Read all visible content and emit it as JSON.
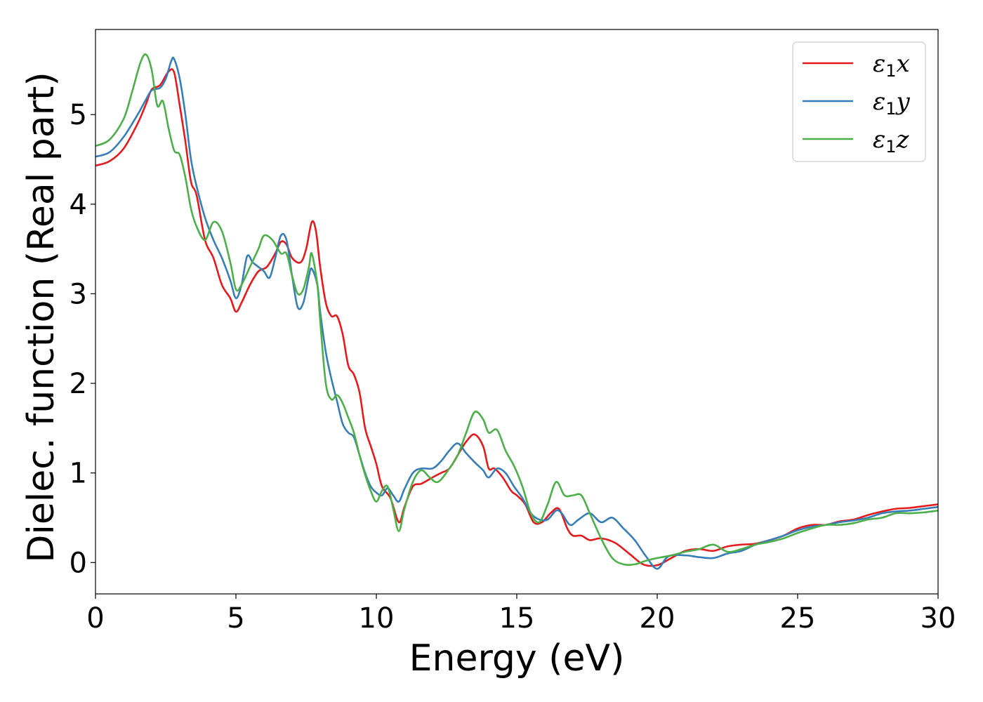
{
  "chart_data": {
    "type": "line",
    "xlabel": "Energy (eV)",
    "ylabel": "Dielec. function (Real part)",
    "xlim": [
      0,
      30
    ],
    "ylim": [
      -0.35,
      5.95
    ],
    "xticks": [
      0,
      5,
      10,
      15,
      20,
      25,
      30
    ],
    "yticks": [
      0,
      1,
      2,
      3,
      4,
      5
    ],
    "xtick_labels": [
      "0",
      "5",
      "10",
      "15",
      "20",
      "25",
      "30"
    ],
    "ytick_labels": [
      "0",
      "1",
      "2",
      "3",
      "4",
      "5"
    ],
    "grid": false,
    "legend_position": "top-right",
    "series": [
      {
        "name": "ε1x",
        "legend": {
          "base": "ε",
          "sub": "1",
          "axis": "x"
        },
        "color": "#e41a1c",
        "points": [
          [
            0,
            4.43
          ],
          [
            0.5,
            4.48
          ],
          [
            1.0,
            4.62
          ],
          [
            1.5,
            4.9
          ],
          [
            1.8,
            5.12
          ],
          [
            2.0,
            5.28
          ],
          [
            2.3,
            5.33
          ],
          [
            2.6,
            5.48
          ],
          [
            2.8,
            5.47
          ],
          [
            3.0,
            5.1
          ],
          [
            3.2,
            4.7
          ],
          [
            3.4,
            4.25
          ],
          [
            3.6,
            4.1
          ],
          [
            3.9,
            3.6
          ],
          [
            4.2,
            3.4
          ],
          [
            4.5,
            3.1
          ],
          [
            4.8,
            2.95
          ],
          [
            5.0,
            2.8
          ],
          [
            5.2,
            2.9
          ],
          [
            5.5,
            3.1
          ],
          [
            5.8,
            3.25
          ],
          [
            6.1,
            3.3
          ],
          [
            6.4,
            3.45
          ],
          [
            6.6,
            3.58
          ],
          [
            6.8,
            3.55
          ],
          [
            7.0,
            3.4
          ],
          [
            7.3,
            3.35
          ],
          [
            7.5,
            3.5
          ],
          [
            7.7,
            3.8
          ],
          [
            7.85,
            3.7
          ],
          [
            8.0,
            3.3
          ],
          [
            8.2,
            2.9
          ],
          [
            8.4,
            2.75
          ],
          [
            8.6,
            2.75
          ],
          [
            8.8,
            2.55
          ],
          [
            9.0,
            2.2
          ],
          [
            9.2,
            2.1
          ],
          [
            9.4,
            1.9
          ],
          [
            9.6,
            1.5
          ],
          [
            9.8,
            1.3
          ],
          [
            10.0,
            1.1
          ],
          [
            10.2,
            0.85
          ],
          [
            10.5,
            0.72
          ],
          [
            10.8,
            0.45
          ],
          [
            11.0,
            0.62
          ],
          [
            11.3,
            0.85
          ],
          [
            11.6,
            0.88
          ],
          [
            12.0,
            0.95
          ],
          [
            12.3,
            1.0
          ],
          [
            12.6,
            1.05
          ],
          [
            12.9,
            1.2
          ],
          [
            13.2,
            1.35
          ],
          [
            13.5,
            1.43
          ],
          [
            13.8,
            1.3
          ],
          [
            14.0,
            1.05
          ],
          [
            14.2,
            1.05
          ],
          [
            14.5,
            0.95
          ],
          [
            14.8,
            0.8
          ],
          [
            15.0,
            0.75
          ],
          [
            15.3,
            0.65
          ],
          [
            15.6,
            0.45
          ],
          [
            15.9,
            0.45
          ],
          [
            16.2,
            0.55
          ],
          [
            16.5,
            0.6
          ],
          [
            16.8,
            0.38
          ],
          [
            17.0,
            0.3
          ],
          [
            17.3,
            0.3
          ],
          [
            17.6,
            0.25
          ],
          [
            18.0,
            0.27
          ],
          [
            18.5,
            0.22
          ],
          [
            19.0,
            0.1
          ],
          [
            19.5,
            -0.02
          ],
          [
            20.0,
            -0.03
          ],
          [
            20.5,
            0.05
          ],
          [
            21.0,
            0.13
          ],
          [
            21.5,
            0.15
          ],
          [
            22.0,
            0.13
          ],
          [
            22.5,
            0.18
          ],
          [
            23.0,
            0.2
          ],
          [
            23.5,
            0.21
          ],
          [
            24.0,
            0.25
          ],
          [
            24.5,
            0.3
          ],
          [
            25.0,
            0.38
          ],
          [
            25.5,
            0.42
          ],
          [
            26.0,
            0.42
          ],
          [
            26.5,
            0.46
          ],
          [
            27.0,
            0.48
          ],
          [
            27.5,
            0.53
          ],
          [
            28.0,
            0.57
          ],
          [
            28.5,
            0.6
          ],
          [
            29.0,
            0.61
          ],
          [
            29.5,
            0.63
          ],
          [
            30.0,
            0.65
          ]
        ]
      },
      {
        "name": "ε1y",
        "legend": {
          "base": "ε",
          "sub": "1",
          "axis": "y"
        },
        "color": "#377eb8",
        "points": [
          [
            0,
            4.53
          ],
          [
            0.5,
            4.58
          ],
          [
            1.0,
            4.75
          ],
          [
            1.5,
            5.0
          ],
          [
            1.8,
            5.17
          ],
          [
            2.0,
            5.27
          ],
          [
            2.3,
            5.3
          ],
          [
            2.5,
            5.4
          ],
          [
            2.7,
            5.6
          ],
          [
            2.8,
            5.62
          ],
          [
            3.0,
            5.4
          ],
          [
            3.2,
            5.0
          ],
          [
            3.4,
            4.5
          ],
          [
            3.6,
            4.2
          ],
          [
            3.9,
            3.85
          ],
          [
            4.2,
            3.6
          ],
          [
            4.5,
            3.4
          ],
          [
            4.8,
            3.15
          ],
          [
            5.0,
            2.95
          ],
          [
            5.2,
            3.1
          ],
          [
            5.4,
            3.42
          ],
          [
            5.6,
            3.35
          ],
          [
            5.8,
            3.3
          ],
          [
            6.0,
            3.25
          ],
          [
            6.2,
            3.18
          ],
          [
            6.4,
            3.4
          ],
          [
            6.6,
            3.65
          ],
          [
            6.8,
            3.6
          ],
          [
            7.0,
            3.2
          ],
          [
            7.2,
            2.85
          ],
          [
            7.4,
            2.9
          ],
          [
            7.6,
            3.2
          ],
          [
            7.7,
            3.28
          ],
          [
            7.9,
            3.1
          ],
          [
            8.0,
            2.8
          ],
          [
            8.2,
            2.35
          ],
          [
            8.4,
            2.05
          ],
          [
            8.6,
            1.8
          ],
          [
            8.8,
            1.55
          ],
          [
            9.0,
            1.45
          ],
          [
            9.2,
            1.4
          ],
          [
            9.4,
            1.2
          ],
          [
            9.6,
            1.0
          ],
          [
            9.8,
            0.85
          ],
          [
            10.0,
            0.78
          ],
          [
            10.2,
            0.75
          ],
          [
            10.4,
            0.83
          ],
          [
            10.6,
            0.75
          ],
          [
            10.8,
            0.68
          ],
          [
            11.0,
            0.82
          ],
          [
            11.3,
            1.0
          ],
          [
            11.6,
            1.05
          ],
          [
            12.0,
            1.05
          ],
          [
            12.3,
            1.13
          ],
          [
            12.6,
            1.25
          ],
          [
            12.9,
            1.33
          ],
          [
            13.2,
            1.22
          ],
          [
            13.5,
            1.12
          ],
          [
            13.8,
            1.03
          ],
          [
            14.0,
            0.95
          ],
          [
            14.3,
            1.05
          ],
          [
            14.6,
            1.0
          ],
          [
            14.9,
            0.85
          ],
          [
            15.2,
            0.72
          ],
          [
            15.5,
            0.55
          ],
          [
            15.8,
            0.48
          ],
          [
            16.1,
            0.48
          ],
          [
            16.4,
            0.58
          ],
          [
            16.6,
            0.55
          ],
          [
            16.9,
            0.42
          ],
          [
            17.2,
            0.48
          ],
          [
            17.6,
            0.55
          ],
          [
            18.0,
            0.45
          ],
          [
            18.4,
            0.5
          ],
          [
            18.8,
            0.38
          ],
          [
            19.2,
            0.25
          ],
          [
            19.6,
            0.07
          ],
          [
            20.0,
            -0.07
          ],
          [
            20.4,
            0.07
          ],
          [
            21.0,
            0.08
          ],
          [
            21.5,
            0.06
          ],
          [
            22.0,
            0.05
          ],
          [
            22.5,
            0.1
          ],
          [
            23.0,
            0.13
          ],
          [
            23.5,
            0.2
          ],
          [
            24.0,
            0.25
          ],
          [
            24.5,
            0.3
          ],
          [
            25.0,
            0.36
          ],
          [
            25.5,
            0.4
          ],
          [
            26.0,
            0.42
          ],
          [
            26.5,
            0.45
          ],
          [
            27.0,
            0.47
          ],
          [
            27.5,
            0.5
          ],
          [
            28.0,
            0.55
          ],
          [
            28.5,
            0.57
          ],
          [
            29.0,
            0.58
          ],
          [
            29.5,
            0.6
          ],
          [
            30.0,
            0.62
          ]
        ]
      },
      {
        "name": "ε1z",
        "legend": {
          "base": "ε",
          "sub": "1",
          "axis": "z"
        },
        "color": "#4daf4a",
        "points": [
          [
            0,
            4.65
          ],
          [
            0.5,
            4.72
          ],
          [
            1.0,
            4.95
          ],
          [
            1.3,
            5.25
          ],
          [
            1.6,
            5.58
          ],
          [
            1.8,
            5.67
          ],
          [
            2.0,
            5.5
          ],
          [
            2.2,
            5.1
          ],
          [
            2.4,
            5.15
          ],
          [
            2.6,
            4.85
          ],
          [
            2.8,
            4.6
          ],
          [
            3.0,
            4.55
          ],
          [
            3.2,
            4.3
          ],
          [
            3.4,
            3.95
          ],
          [
            3.6,
            3.75
          ],
          [
            3.9,
            3.6
          ],
          [
            4.2,
            3.8
          ],
          [
            4.5,
            3.7
          ],
          [
            4.8,
            3.35
          ],
          [
            5.0,
            3.05
          ],
          [
            5.2,
            3.1
          ],
          [
            5.5,
            3.3
          ],
          [
            5.8,
            3.5
          ],
          [
            6.0,
            3.65
          ],
          [
            6.3,
            3.6
          ],
          [
            6.6,
            3.45
          ],
          [
            6.8,
            3.45
          ],
          [
            7.0,
            3.2
          ],
          [
            7.2,
            3.0
          ],
          [
            7.4,
            3.05
          ],
          [
            7.6,
            3.3
          ],
          [
            7.7,
            3.45
          ],
          [
            7.9,
            3.1
          ],
          [
            8.0,
            2.7
          ],
          [
            8.2,
            2.0
          ],
          [
            8.4,
            1.82
          ],
          [
            8.6,
            1.87
          ],
          [
            8.8,
            1.78
          ],
          [
            9.0,
            1.62
          ],
          [
            9.2,
            1.45
          ],
          [
            9.4,
            1.2
          ],
          [
            9.6,
            0.98
          ],
          [
            9.8,
            0.8
          ],
          [
            10.0,
            0.68
          ],
          [
            10.2,
            0.8
          ],
          [
            10.4,
            0.85
          ],
          [
            10.6,
            0.6
          ],
          [
            10.8,
            0.35
          ],
          [
            11.0,
            0.6
          ],
          [
            11.3,
            0.9
          ],
          [
            11.6,
            1.03
          ],
          [
            11.9,
            0.95
          ],
          [
            12.2,
            0.9
          ],
          [
            12.6,
            1.05
          ],
          [
            12.9,
            1.2
          ],
          [
            13.2,
            1.45
          ],
          [
            13.5,
            1.68
          ],
          [
            13.8,
            1.6
          ],
          [
            14.0,
            1.45
          ],
          [
            14.3,
            1.48
          ],
          [
            14.6,
            1.25
          ],
          [
            14.9,
            1.08
          ],
          [
            15.2,
            0.85
          ],
          [
            15.5,
            0.55
          ],
          [
            15.8,
            0.45
          ],
          [
            16.1,
            0.65
          ],
          [
            16.4,
            0.9
          ],
          [
            16.7,
            0.75
          ],
          [
            17.0,
            0.75
          ],
          [
            17.3,
            0.75
          ],
          [
            17.6,
            0.55
          ],
          [
            18.0,
            0.27
          ],
          [
            18.4,
            0.05
          ],
          [
            18.8,
            -0.02
          ],
          [
            19.2,
            -0.02
          ],
          [
            19.6,
            0.02
          ],
          [
            20.0,
            0.05
          ],
          [
            20.5,
            0.08
          ],
          [
            21.0,
            0.12
          ],
          [
            21.5,
            0.15
          ],
          [
            22.0,
            0.2
          ],
          [
            22.5,
            0.12
          ],
          [
            23.0,
            0.15
          ],
          [
            23.5,
            0.2
          ],
          [
            24.0,
            0.23
          ],
          [
            24.5,
            0.27
          ],
          [
            25.0,
            0.33
          ],
          [
            25.5,
            0.38
          ],
          [
            26.0,
            0.42
          ],
          [
            26.5,
            0.42
          ],
          [
            27.0,
            0.44
          ],
          [
            27.5,
            0.48
          ],
          [
            28.0,
            0.5
          ],
          [
            28.5,
            0.55
          ],
          [
            29.0,
            0.55
          ],
          [
            29.5,
            0.56
          ],
          [
            30.0,
            0.58
          ]
        ]
      }
    ]
  }
}
